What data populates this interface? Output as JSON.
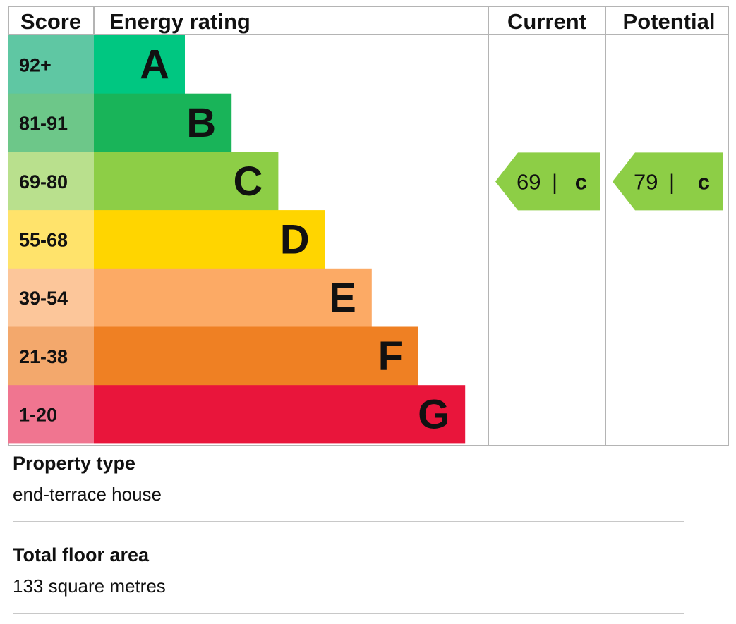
{
  "chart_data": {
    "type": "bar",
    "headers": {
      "score": "Score",
      "rating": "Energy rating",
      "current": "Current",
      "potential": "Potential"
    },
    "bands": [
      {
        "range": "92+",
        "letter": "A",
        "value": 1,
        "color": "#00c781",
        "score_bg": "#5fc7a3"
      },
      {
        "range": "81-91",
        "letter": "B",
        "value": 2,
        "color": "#19b459",
        "score_bg": "#6dc789"
      },
      {
        "range": "69-80",
        "letter": "C",
        "value": 3,
        "color": "#8dce46",
        "score_bg": "#b9e08d"
      },
      {
        "range": "55-68",
        "letter": "D",
        "value": 4,
        "color": "#ffd500",
        "score_bg": "#ffe36b"
      },
      {
        "range": "39-54",
        "letter": "E",
        "value": 5,
        "color": "#fcaa65",
        "score_bg": "#fcc69a"
      },
      {
        "range": "21-38",
        "letter": "F",
        "value": 6,
        "color": "#ef8023",
        "score_bg": "#f3a86c"
      },
      {
        "range": "1-20",
        "letter": "G",
        "value": 7,
        "color": "#e9153b",
        "score_bg": "#f07590"
      }
    ],
    "current": {
      "score": "69",
      "letter": "C",
      "band": "C",
      "color": "#8dce46"
    },
    "potential": {
      "score": "79",
      "letter": "C",
      "band": "C",
      "color": "#8dce46"
    },
    "grid_color": "#b4b4b4"
  },
  "property": {
    "title": "Property type",
    "value": "end-terrace house"
  },
  "floor_area": {
    "title": "Total floor area",
    "value": "133 square metres"
  }
}
